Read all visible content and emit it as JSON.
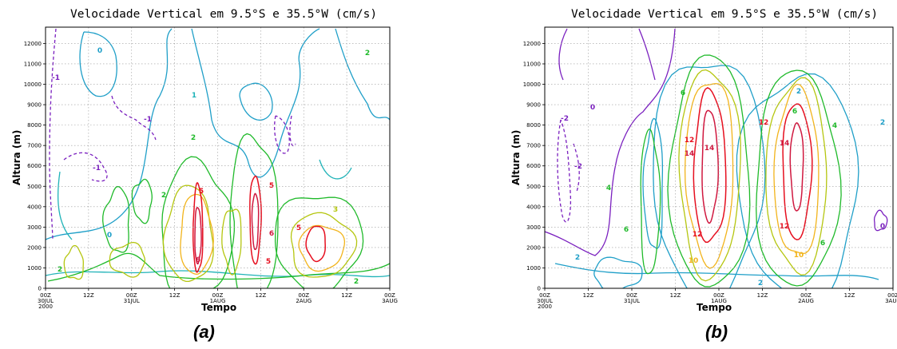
{
  "panels": [
    {
      "id": "a",
      "title": "Velocidade Vertical em 9.5°S e 35.5°W (cm/s)",
      "ylabel": "Altura (m)",
      "xlabel": "Tempo",
      "caption": "(a)"
    },
    {
      "id": "b",
      "title": "Velocidade Vertical em 9.5°S e 35.5°W (cm/s)",
      "ylabel": "Altura (m)",
      "xlabel": "Tempo",
      "caption": "(b)"
    }
  ],
  "colors": {
    "neg": "#7a1fbf",
    "c0": "#1f9fc8",
    "c1": "#20b3b8",
    "c2": "#1fba2a",
    "c3": "#b5c60f",
    "c4": "#f2b41b",
    "c5": "#e60f1f",
    "c6": "#d0183f"
  },
  "chart_data": [
    {
      "type": "contour",
      "title": "Velocidade Vertical em 9.5°S e 35.5°W (cm/s)",
      "xlabel": "Tempo",
      "ylabel": "Altura (m)",
      "yticks": [
        0,
        1000,
        2000,
        3000,
        4000,
        5000,
        6000,
        7000,
        8000,
        9000,
        10000,
        11000,
        12000
      ],
      "ylim": [
        0,
        12800
      ],
      "xticks": [
        {
          "hours": 0,
          "lines": [
            "00Z",
            "30JUL",
            "2000"
          ]
        },
        {
          "hours": 12,
          "lines": [
            "12Z"
          ]
        },
        {
          "hours": 24,
          "lines": [
            "00Z",
            "31JUL"
          ]
        },
        {
          "hours": 36,
          "lines": [
            "12Z"
          ]
        },
        {
          "hours": 48,
          "lines": [
            "00Z",
            "1AUG"
          ]
        },
        {
          "hours": 60,
          "lines": [
            "12Z"
          ]
        },
        {
          "hours": 72,
          "lines": [
            "00Z",
            "2AUG"
          ]
        },
        {
          "hours": 84,
          "lines": [
            "12Z"
          ]
        },
        {
          "hours": 96,
          "lines": [
            "00Z",
            "3AUG"
          ]
        }
      ],
      "xlim": [
        0,
        96
      ],
      "grid": true,
      "levels_cm_s": [
        -1,
        0,
        1,
        2,
        3,
        4,
        5,
        6
      ],
      "cells": [
        {
          "t": 42,
          "z": 3000,
          "dt": 2.0,
          "dz": 2000,
          "peak": 6
        },
        {
          "t": 58,
          "z": 3500,
          "dt": 1.8,
          "dz": 2200,
          "peak": 6
        },
        {
          "t": 75,
          "z": 2000,
          "dt": 3.5,
          "dz": 1300,
          "peak": 5
        },
        {
          "t": 36,
          "z": 4200,
          "dt": 3,
          "dz": 1300,
          "peak": 4
        },
        {
          "t": 50,
          "z": 2500,
          "dt": 3,
          "dz": 1500,
          "peak": 4
        }
      ],
      "negative_regions": [
        {
          "t": 3,
          "z": 10000,
          "peak": -1
        },
        {
          "t": 18,
          "z": 5800,
          "peak": -1
        },
        {
          "t": 32,
          "z": 8200,
          "peak": -1
        },
        {
          "t": 55,
          "z": 7000,
          "peak": -1
        }
      ]
    },
    {
      "type": "contour",
      "title": "Velocidade Vertical em 9.5°S e 35.5°W (cm/s)",
      "xlabel": "Tempo",
      "ylabel": "Altura (m)",
      "yticks": [
        0,
        1000,
        2000,
        3000,
        4000,
        5000,
        6000,
        7000,
        8000,
        9000,
        10000,
        11000,
        12000
      ],
      "ylim": [
        0,
        12800
      ],
      "xticks": [
        {
          "hours": 0,
          "lines": [
            "00Z",
            "30JUL",
            "2000"
          ]
        },
        {
          "hours": 12,
          "lines": [
            "12Z"
          ]
        },
        {
          "hours": 24,
          "lines": [
            "00Z",
            "31JUL"
          ]
        },
        {
          "hours": 36,
          "lines": [
            "12Z"
          ]
        },
        {
          "hours": 48,
          "lines": [
            "00Z",
            "1AUG"
          ]
        },
        {
          "hours": 60,
          "lines": [
            "12Z"
          ]
        },
        {
          "hours": 72,
          "lines": [
            "00Z",
            "2AUG"
          ]
        },
        {
          "hours": 84,
          "lines": [
            "12Z"
          ]
        },
        {
          "hours": 96,
          "lines": [
            "00Z",
            "3AUG"
          ]
        }
      ],
      "xlim": [
        0,
        96
      ],
      "grid": true,
      "levels_cm_s": [
        -2,
        0,
        2,
        4,
        6,
        8,
        10,
        12,
        14
      ],
      "cells": [
        {
          "t": 45,
          "z": 6000,
          "peak": 14
        },
        {
          "t": 69,
          "z": 6000,
          "peak": 14
        }
      ],
      "negative_regions": [
        {
          "t": 4,
          "z": 6500,
          "peak": -2
        },
        {
          "t": 92,
          "z": 3000,
          "peak": 0
        }
      ]
    }
  ]
}
